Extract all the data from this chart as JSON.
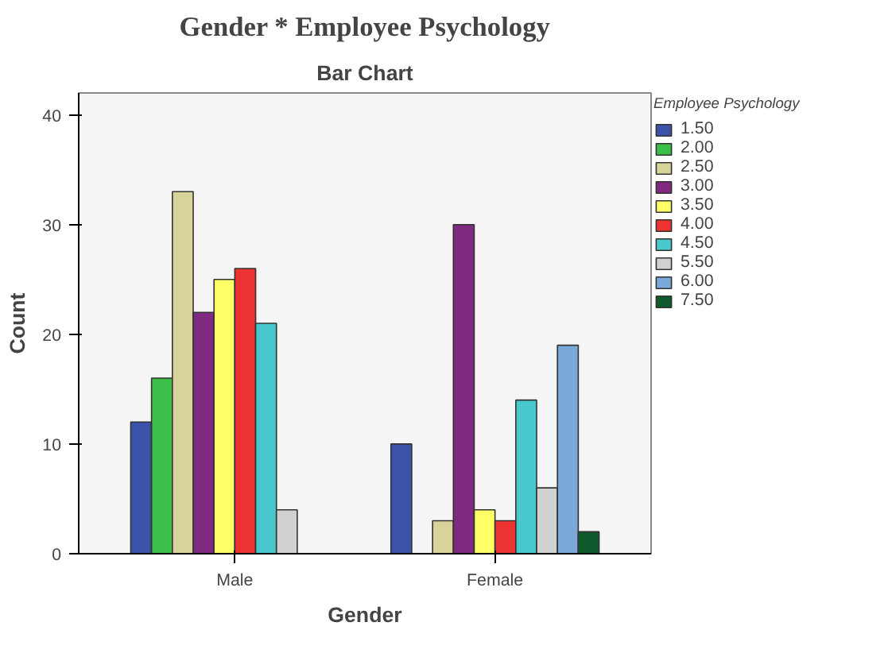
{
  "chart_data": {
    "type": "bar",
    "title": "Gender * Employee Psychology",
    "subtitle": "Bar Chart",
    "xlabel": "Gender",
    "ylabel": "Count",
    "legend_title": "Employee Psychology",
    "categories": [
      "Male",
      "Female"
    ],
    "series": [
      {
        "name": "1.50",
        "color": "#3a53a8",
        "values": [
          12,
          10
        ]
      },
      {
        "name": "2.00",
        "color": "#3bbf48",
        "values": [
          16,
          null
        ]
      },
      {
        "name": "2.50",
        "color": "#d8d39a",
        "values": [
          33,
          3
        ]
      },
      {
        "name": "3.00",
        "color": "#7e2a80",
        "values": [
          22,
          30
        ]
      },
      {
        "name": "3.50",
        "color": "#ffff66",
        "values": [
          25,
          4
        ]
      },
      {
        "name": "4.00",
        "color": "#ee3333",
        "values": [
          26,
          3
        ]
      },
      {
        "name": "4.50",
        "color": "#48c8cc",
        "values": [
          21,
          14
        ]
      },
      {
        "name": "5.50",
        "color": "#d0d0d0",
        "values": [
          4,
          6
        ]
      },
      {
        "name": "6.00",
        "color": "#7aa8d8",
        "values": [
          null,
          19
        ]
      },
      {
        "name": "7.50",
        "color": "#0e5a2c",
        "values": [
          null,
          2
        ]
      }
    ],
    "ylim": [
      0,
      42
    ],
    "yticks": [
      0,
      10,
      20,
      30,
      40
    ],
    "grid": false,
    "legend": "right"
  }
}
